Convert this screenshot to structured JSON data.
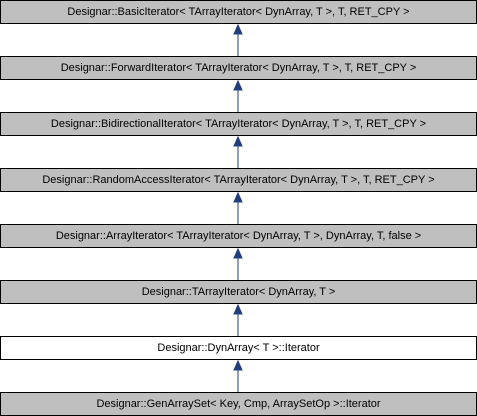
{
  "diagram": {
    "colors": {
      "inherited_fill": "#bfbfbf",
      "current_fill": "#ffffff",
      "border": "#000000",
      "arrow": "#1f3f7f"
    },
    "nodes": [
      {
        "label": "Designar::BasicIterator< TArrayIterator< DynArray, T >, T, RET_CPY >",
        "kind": "inherited"
      },
      {
        "label": "Designar::ForwardIterator< TArrayIterator< DynArray, T >, T, RET_CPY >",
        "kind": "inherited"
      },
      {
        "label": "Designar::BidirectionalIterator< TArrayIterator< DynArray, T >, T, RET_CPY >",
        "kind": "inherited"
      },
      {
        "label": "Designar::RandomAccessIterator< TArrayIterator< DynArray, T >, T, RET_CPY >",
        "kind": "inherited"
      },
      {
        "label": "Designar::ArrayIterator< TArrayIterator< DynArray, T >, DynArray, T, false >",
        "kind": "inherited"
      },
      {
        "label": "Designar::TArrayIterator< DynArray, T >",
        "kind": "inherited"
      },
      {
        "label": "Designar::DynArray< T >::Iterator",
        "kind": "current"
      },
      {
        "label": "Designar::GenArraySet< Key, Cmp, ArraySetOp >::Iterator",
        "kind": "inherited"
      }
    ]
  }
}
